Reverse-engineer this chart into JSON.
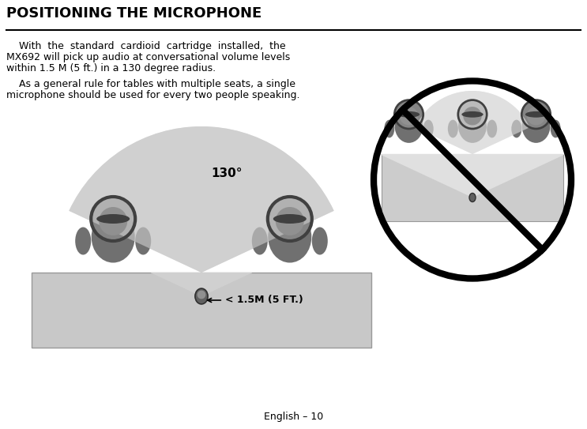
{
  "title": "POSITIONING THE MICROPHONE",
  "para1_line1": "    With  the  standard  cardioid  cartridge  installed,  the",
  "para1_line2": "MX692 will pick up audio at conversational volume levels",
  "para1_line3": "within 1.5 M (5 ft.) in a 130 degree radius.",
  "para2_line1": "    As a general rule for tables with multiple seats, a single",
  "para2_line2": "microphone should be used for every two people speaking.",
  "label_130": "130°",
  "label_dist": "< 1.5M (5 FT.)",
  "footer": "English – 10",
  "bg_color": "#ffffff",
  "table_color_left": "#c8c8c8",
  "table_color_right": "#cccccc",
  "fan_color_left": "#d0d0d0",
  "fan_color_right": "#e0e0e0",
  "person_body_color": "#808080",
  "person_dark_color": "#555555",
  "title_fontsize": 13,
  "body_fontsize": 9,
  "footer_fontsize": 9
}
